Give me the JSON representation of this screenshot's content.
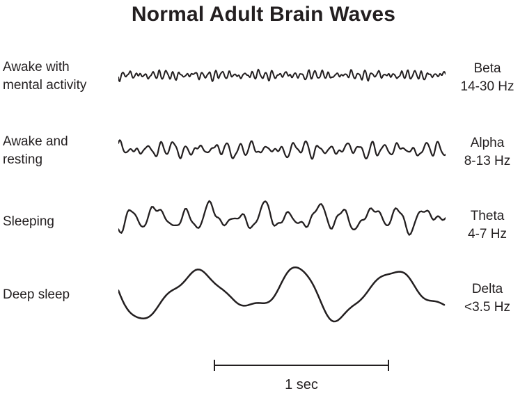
{
  "title": "Normal Adult Brain Waves",
  "ink_color": "#231f20",
  "rows": [
    {
      "label_line1": "Awake with",
      "label_line2": "mental activity",
      "band": "Beta",
      "freq_range": "14-30 Hz",
      "wave": {
        "band": "beta",
        "cycles": 46,
        "amp": 6,
        "seed": 11,
        "harmonics": [
          [
            1,
            1
          ],
          [
            1.13,
            0.7
          ],
          [
            0.52,
            0.35
          ],
          [
            1.6,
            0.45
          ],
          [
            2.2,
            0.2
          ],
          [
            0.23,
            0.25
          ]
        ]
      }
    },
    {
      "label_line1": "Awake and",
      "label_line2": "resting",
      "band": "Alpha",
      "freq_range": "8-13 Hz",
      "wave": {
        "band": "alpha",
        "cycles": 26,
        "amp": 10,
        "seed": 23,
        "harmonics": [
          [
            1,
            1
          ],
          [
            1.12,
            0.6
          ],
          [
            0.5,
            0.4
          ],
          [
            1.55,
            0.35
          ],
          [
            2.1,
            0.18
          ],
          [
            0.27,
            0.3
          ]
        ]
      }
    },
    {
      "label_line1": "Sleeping",
      "label_line2": "",
      "band": "Theta",
      "freq_range": "4-7 Hz",
      "wave": {
        "band": "theta",
        "cycles": 12,
        "amp": 16,
        "seed": 5,
        "harmonics": [
          [
            1,
            1
          ],
          [
            0.5,
            0.5
          ],
          [
            1.5,
            0.45
          ],
          [
            2.3,
            0.25
          ],
          [
            3.1,
            0.12
          ]
        ]
      }
    },
    {
      "label_line1": "Deep sleep",
      "label_line2": "",
      "band": "Delta",
      "freq_range": "<3.5 Hz",
      "wave": {
        "band": "delta",
        "cycles": 3.3,
        "amp": 30,
        "seed": 42,
        "harmonics": [
          [
            1,
            1
          ],
          [
            0.5,
            0.2
          ],
          [
            2.1,
            0.18
          ],
          [
            3.4,
            0.1
          ],
          [
            1.45,
            0.25
          ]
        ]
      }
    }
  ],
  "scale_bar": {
    "label": "1 sec"
  }
}
